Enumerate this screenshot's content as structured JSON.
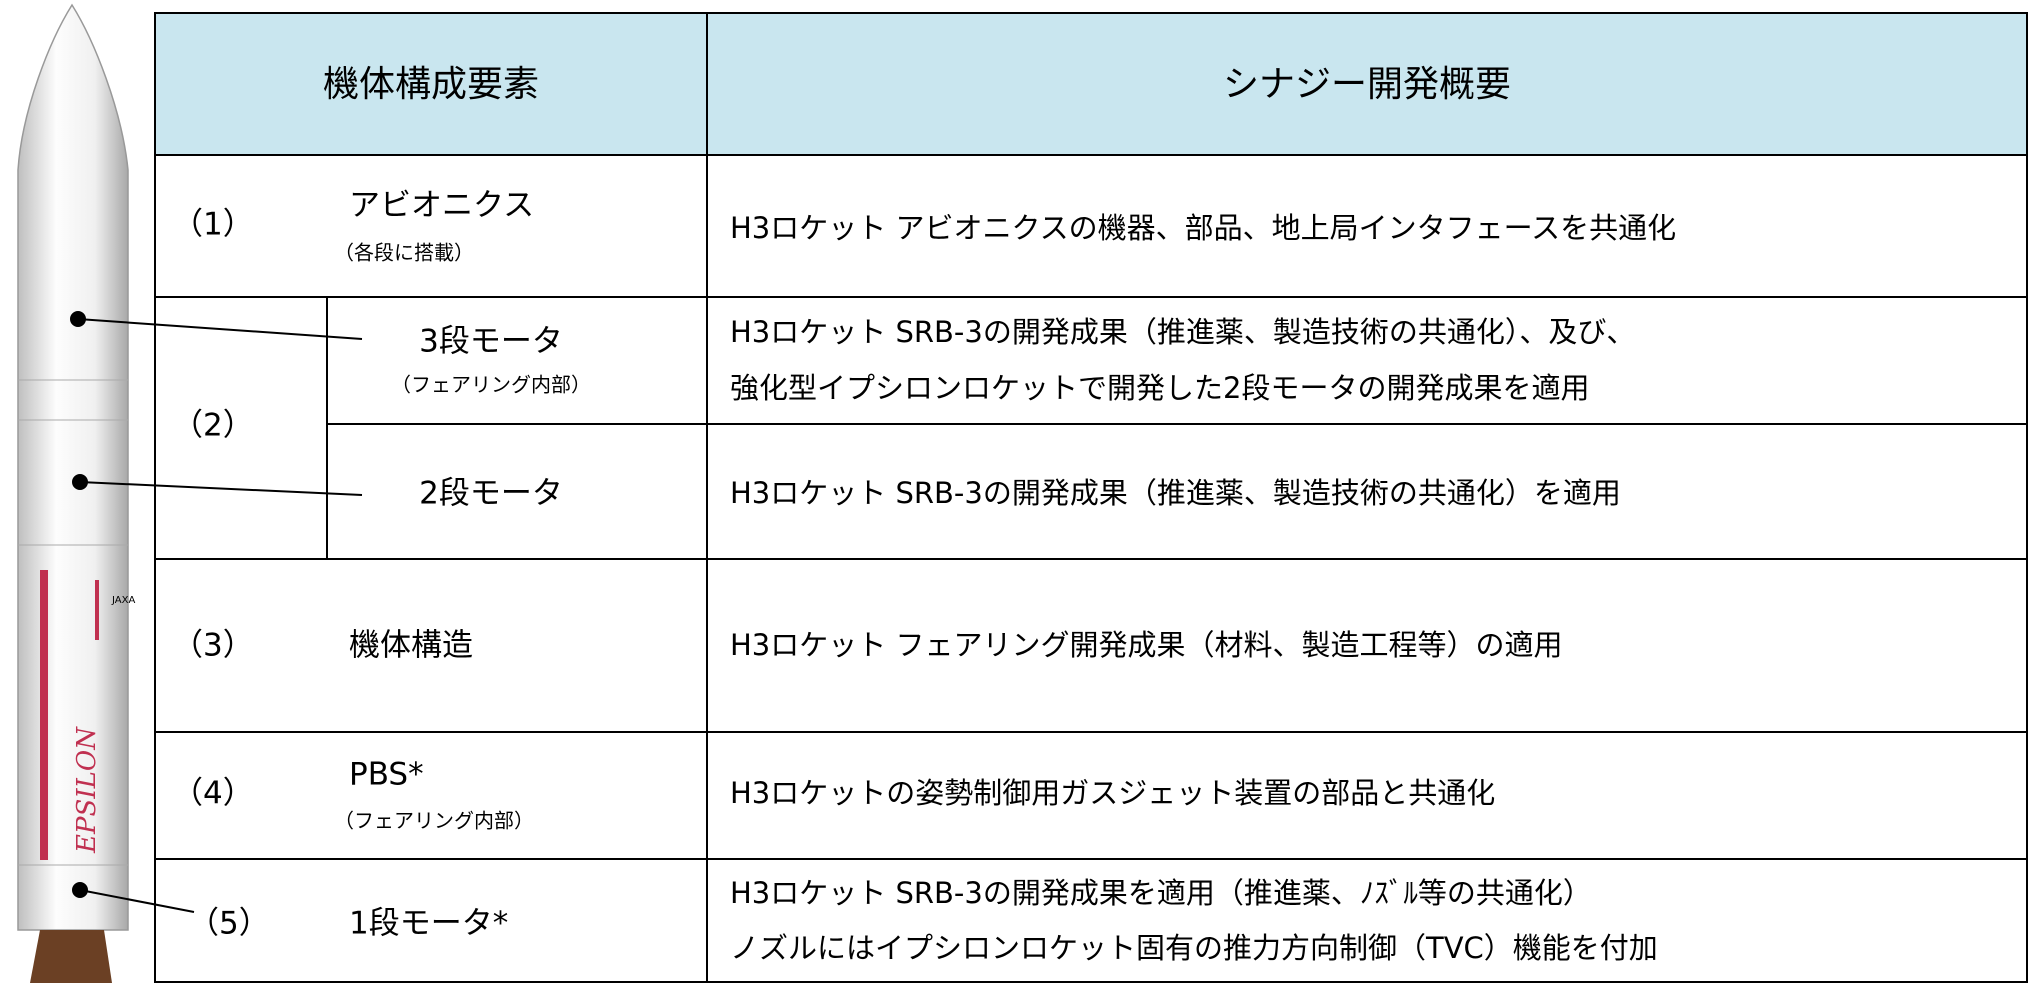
{
  "header": {
    "component": "機体構成要素",
    "overview": "シナジー開発概要"
  },
  "rocket": {
    "label": "EPSILON",
    "logo": "JAXA"
  },
  "rows": [
    {
      "number": "（1）",
      "name": "アビオニクス",
      "note": "（各段に搭載）",
      "overview": [
        "H3ロケット アビオニクスの機器、部品、地上局インタフェースを共通化"
      ]
    },
    {
      "number": "（2）",
      "subrows": [
        {
          "name": "3段モータ",
          "note": "（フェアリング内部）",
          "overview": [
            "H3ロケット SRB-3の開発成果（推進薬、製造技術の共通化）、及び、",
            "強化型イプシロンロケットで開発した2段モータの開発成果を適用"
          ]
        },
        {
          "name": "2段モータ",
          "overview": [
            "H3ロケット SRB-3の開発成果（推進薬、製造技術の共通化）を適用"
          ]
        }
      ]
    },
    {
      "number": "（3）",
      "name": "機体構造",
      "overview": [
        "H3ロケット フェアリング開発成果（材料、製造工程等）の適用"
      ]
    },
    {
      "number": "（4）",
      "name": "PBS*",
      "note": "（フェアリング内部）",
      "overview": [
        "H3ロケットの姿勢制御用ガスジェット装置の部品と共通化"
      ]
    },
    {
      "number": "（5）",
      "name": "1段モータ*",
      "overview": [
        "H3ロケット SRB-3の開発成果を適用（推進薬、ﾉｽﾞﾙ等の共通化）",
        "ノズルにはイプシロンロケット固有の推力方向制御（TVC）機能を付加"
      ]
    }
  ]
}
